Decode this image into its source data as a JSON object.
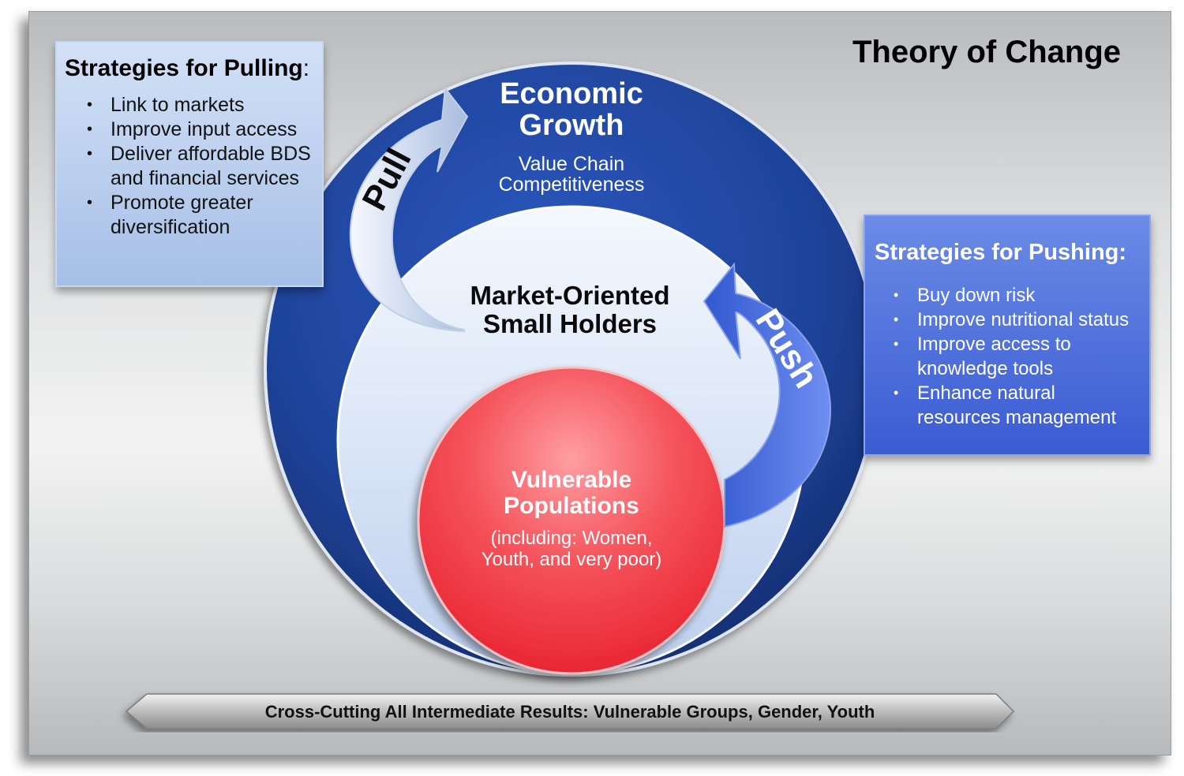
{
  "title": "Theory of Change",
  "pulling": {
    "heading": "Strategies for Pulling",
    "colon": ":",
    "items": [
      "Link to markets",
      "Improve input access",
      "Deliver affordable BDS and financial services",
      "Promote greater diversification"
    ]
  },
  "pushing": {
    "heading": "Strategies for Pushing:",
    "items": [
      "Buy down risk",
      "Improve nutritional status",
      "Improve access to knowledge tools",
      "Enhance natural resources management"
    ]
  },
  "outer_circle": {
    "title_line1": "Economic",
    "title_line2": "Growth",
    "subtitle_line1": "Value Chain",
    "subtitle_line2": "Competitiveness"
  },
  "middle_circle": {
    "line1": "Market-Oriented",
    "line2": "Small Holders"
  },
  "inner_circle": {
    "title_line1": "Vulnerable",
    "title_line2": "Populations",
    "sub_line1": "(including: Women,",
    "sub_line2": "Youth, and very poor)"
  },
  "arrows": {
    "pull_label": "Pull",
    "push_label": "Push"
  },
  "banner": "Cross-Cutting All Intermediate Results: Vulnerable Groups, Gender, Youth",
  "colors": {
    "outer_blue": "#1d3f93",
    "inner_red": "#f0404b",
    "push_blue": "#4c6fdc"
  }
}
